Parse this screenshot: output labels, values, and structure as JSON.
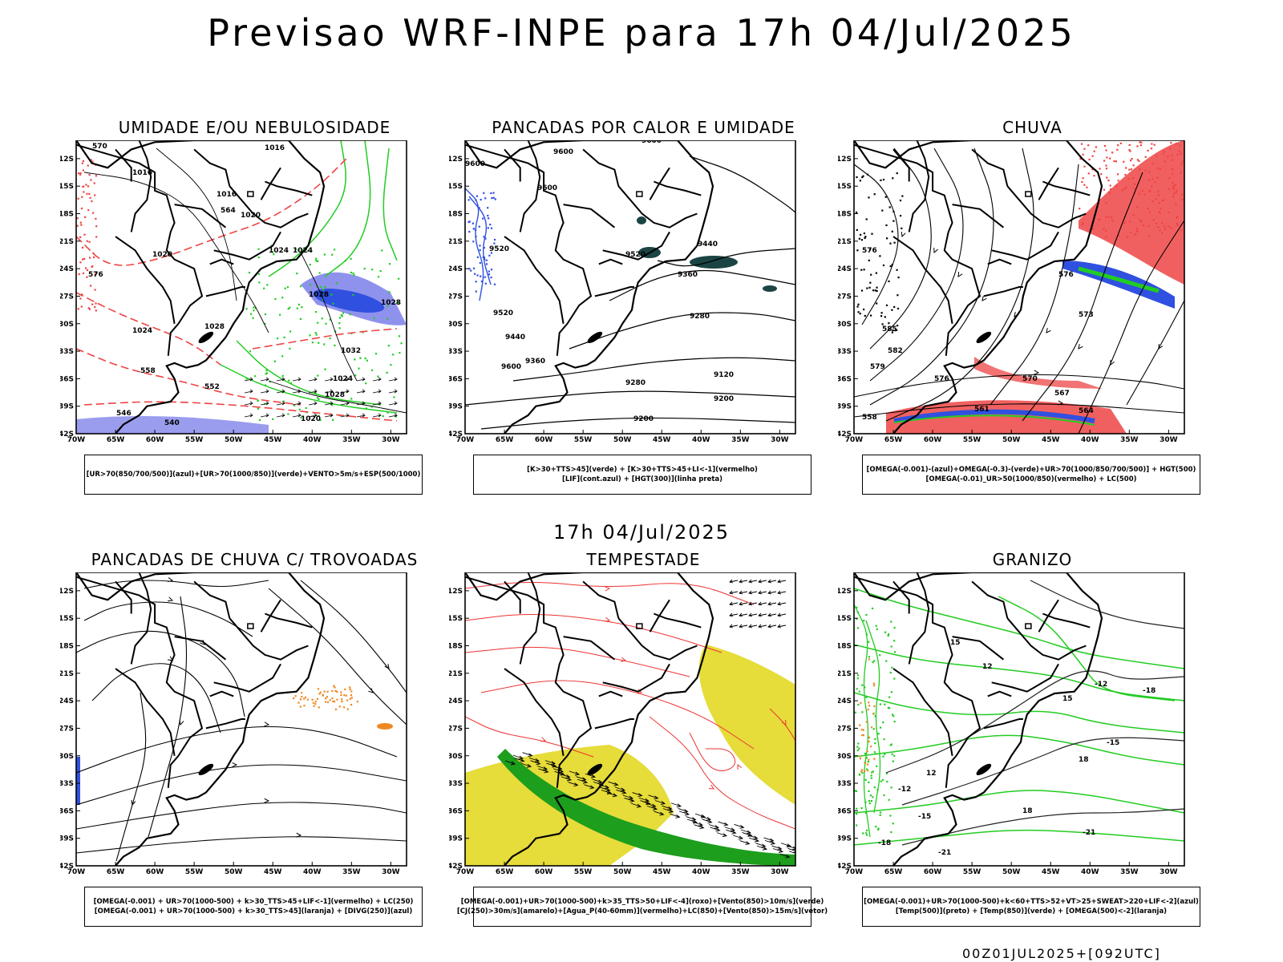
{
  "main_title": "Previsao WRF-INPE  para 17h 04/Jul/2025",
  "mid_title": "17h 04/Jul/2025",
  "footer": "00Z01JUL2025+[092UTC]",
  "axes": {
    "lat_ticks": [
      "12S",
      "15S",
      "18S",
      "21S",
      "24S",
      "27S",
      "30S",
      "33S",
      "36S",
      "39S",
      "42S"
    ],
    "lon_ticks": [
      "70W",
      "65W",
      "60W",
      "55W",
      "50W",
      "45W",
      "40W",
      "35W",
      "30W"
    ]
  },
  "colors": {
    "blue": "#3050e0",
    "lightblue": "#8f92ec",
    "green": "#22cc22",
    "red": "#ee4444",
    "orange": "#ee8822",
    "yellow": "#e6dc3a",
    "teal": "#1c4444"
  },
  "panels": [
    {
      "title": "UMIDADE E/OU NEBULOSIDADE",
      "caption": [
        "[UR>70(850/700/500)](azul)+[UR>70(1000/850)](verde)+VENTO>5m/s+ESP(500/1000)"
      ],
      "labels": [
        "1016",
        "1016",
        "1016",
        "1020",
        "1020",
        "1024",
        "1024",
        "1028",
        "1028",
        "1032",
        "1024",
        "1028",
        "1028",
        "1024",
        "1020",
        "576",
        "570",
        "564",
        "558",
        "552",
        "546",
        "540"
      ]
    },
    {
      "title": "PANCADAS POR CALOR E UMIDADE",
      "caption": [
        "[K>30+TTS>45](verde) + [K>30+TTS>45+LI<-1](vermelho)",
        "[LIF](cont.azul) + [HGT(300)](linha preta)"
      ],
      "labels": [
        "9600",
        "9600",
        "9600",
        "9600",
        "9600",
        "9520",
        "9520",
        "9440",
        "9360",
        "9280",
        "9200",
        "9120",
        "9520",
        "9440",
        "9360",
        "9280",
        "9200"
      ]
    },
    {
      "title": "CHUVA",
      "caption": [
        "[OMEGA(-0.001)-(azul)+OMEGA(-0.3)-(verde)+UR>70(1000/850/700/500)] + HGT(500)",
        "[OMEGA(-0.01)_UR>50(1000/850)(vermelho) + LC(500)"
      ],
      "labels": [
        "576",
        "585",
        "582",
        "579",
        "576",
        "573",
        "570",
        "567",
        "564",
        "561",
        "558",
        "576"
      ]
    },
    {
      "title": "PANCADAS DE CHUVA C/ TROVOADAS",
      "caption": [
        "[OMEGA(-0.001) + UR>70(1000-500) + k>30_TTS>45+LIF<-1](vermelho) + LC(250)",
        "[OMEGA(-0.001) + UR>70(1000-500) + k>30_TTS>45](laranja) + [DIVG(250)](azul)"
      ],
      "labels": []
    },
    {
      "title": "TEMPESTADE",
      "caption": [
        "[OMEGA(-0.001)+UR>70(1000-500)+k>35_TTS>50+LIF<-4](roxo)+[Vento(850)>10m/s](verde)",
        "[CJ(250)>30m/s](amarelo)+[Agua_P(40-60mm)](vermelho)+LC(850)+[Vento(850)>15m/s](vetor)"
      ],
      "labels": []
    },
    {
      "title": "GRANIZO",
      "caption": [
        "[OMEGA(-0.001)+UR>70(1000-500)+k<60+TTS>52+VT>25+SWEAT>220+LIF<-2](azul)",
        "[Temp(500)](preto) + [Temp(850)](verde) + [OMEGA(500)<-2](laranja)"
      ],
      "labels": [
        "-12",
        "-12",
        "-15",
        "-15",
        "-18",
        "-18",
        "-21",
        "-21",
        "12",
        "15",
        "18",
        "12",
        "15",
        "18"
      ]
    }
  ]
}
